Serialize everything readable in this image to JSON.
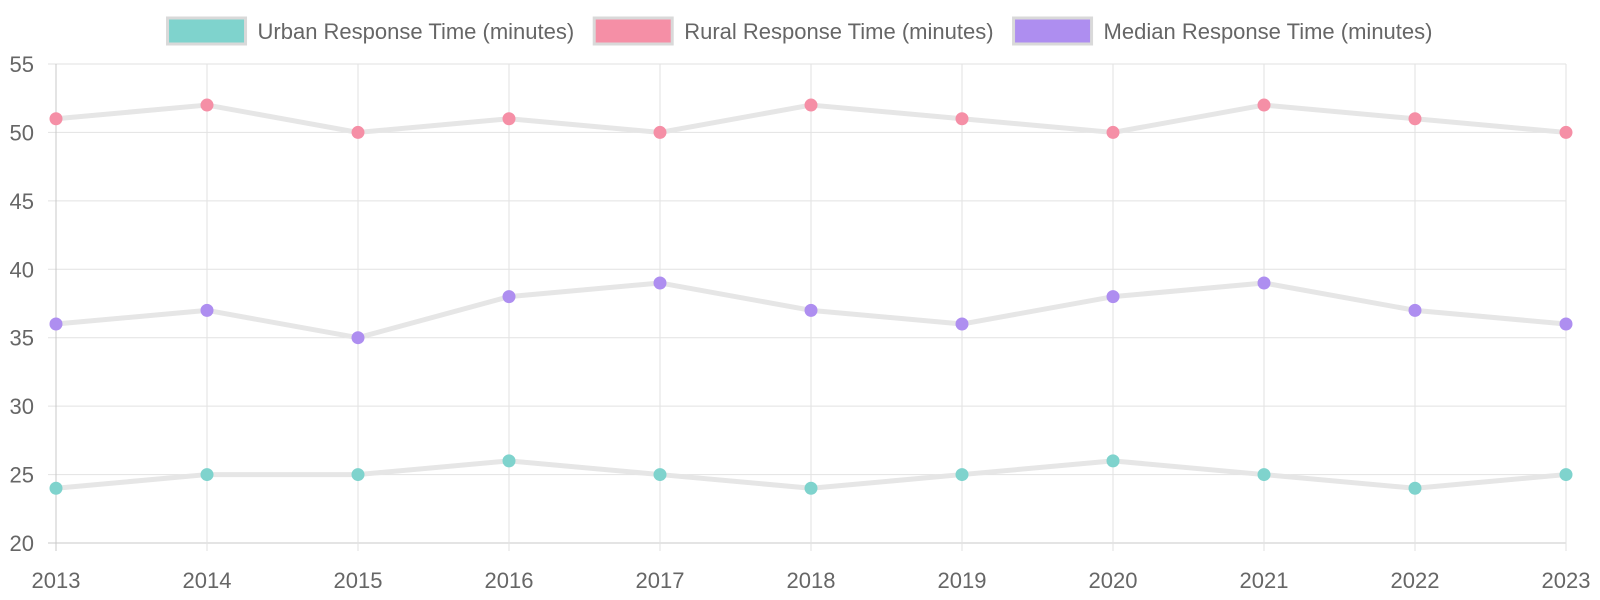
{
  "chart_data": {
    "type": "line",
    "categories": [
      "2013",
      "2014",
      "2015",
      "2016",
      "2017",
      "2018",
      "2019",
      "2020",
      "2021",
      "2022",
      "2023"
    ],
    "series": [
      {
        "name": "Urban Response Time (minutes)",
        "values": [
          24,
          25,
          25,
          26,
          25,
          24,
          25,
          26,
          25,
          24,
          25
        ],
        "color": "#7fd3cd"
      },
      {
        "name": "Rural Response Time (minutes)",
        "values": [
          51,
          52,
          50,
          51,
          50,
          52,
          51,
          50,
          52,
          51,
          50
        ],
        "color": "#f58fa6"
      },
      {
        "name": "Median Response Time (minutes)",
        "values": [
          36,
          37,
          35,
          38,
          39,
          37,
          36,
          38,
          39,
          37,
          36
        ],
        "color": "#ae8ef0"
      }
    ],
    "ylim": [
      20,
      55
    ],
    "yticks": [
      20,
      25,
      30,
      35,
      40,
      45,
      50,
      55
    ],
    "grid": true,
    "legend_position": "top",
    "line_color": "#e6e6e6",
    "title": "",
    "xlabel": "",
    "ylabel": ""
  }
}
